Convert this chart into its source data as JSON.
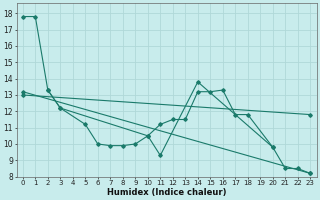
{
  "xlabel": "Humidex (Indice chaleur)",
  "bg_color": "#c8ecec",
  "grid_color": "#b0d8d8",
  "line_color": "#1a7a6a",
  "xlim": [
    -0.5,
    23.5
  ],
  "ylim": [
    8,
    18.6
  ],
  "yticks": [
    8,
    9,
    10,
    11,
    12,
    13,
    14,
    15,
    16,
    17,
    18
  ],
  "xticks": [
    0,
    1,
    2,
    3,
    4,
    5,
    6,
    7,
    8,
    9,
    10,
    11,
    12,
    13,
    14,
    15,
    16,
    17,
    18,
    19,
    20,
    21,
    22,
    23
  ],
  "series": [
    {
      "x": [
        0,
        1,
        2,
        3,
        10,
        11,
        14,
        20,
        21,
        22,
        23
      ],
      "y": [
        17.8,
        17.8,
        13.3,
        12.2,
        10.5,
        9.3,
        13.8,
        9.8,
        8.5,
        8.5,
        8.2
      ]
    },
    {
      "x": [
        2,
        3,
        5,
        6,
        7,
        8,
        9,
        10,
        11,
        12,
        13,
        14,
        15,
        16,
        17,
        18,
        20
      ],
      "y": [
        13.3,
        12.2,
        11.2,
        10.0,
        9.9,
        9.9,
        10.0,
        10.5,
        11.2,
        11.5,
        11.5,
        13.2,
        13.2,
        13.3,
        11.8,
        11.8,
        9.8
      ]
    },
    {
      "x": [
        0,
        23
      ],
      "y": [
        13.2,
        8.2
      ]
    },
    {
      "x": [
        0,
        23
      ],
      "y": [
        13.0,
        11.8
      ]
    }
  ]
}
